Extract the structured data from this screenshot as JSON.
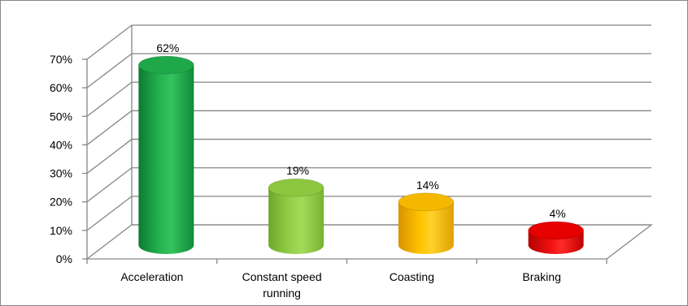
{
  "chart_data": {
    "type": "bar",
    "style": "3d-cylinder",
    "title": "",
    "xlabel": "",
    "ylabel": "",
    "categories": [
      "Acceleration",
      "Constant speed running",
      "Coasting",
      "Braking"
    ],
    "category_lines": [
      [
        "Acceleration"
      ],
      [
        "Constant speed",
        "running"
      ],
      [
        "Coasting"
      ],
      [
        "Braking"
      ]
    ],
    "values": [
      62,
      19,
      14,
      4
    ],
    "data_labels": [
      "62%",
      "19%",
      "14%",
      "4%"
    ],
    "ylim": [
      0,
      70
    ],
    "yticks": [
      0,
      10,
      20,
      30,
      40,
      50,
      60,
      70
    ],
    "ytick_labels": [
      "0%",
      "10%",
      "20%",
      "30%",
      "40%",
      "50%",
      "60%",
      "70%"
    ],
    "grid": true,
    "legend": "none",
    "colors": [
      "#1fa84a",
      "#8cc63f",
      "#f5b800",
      "#e60000"
    ]
  }
}
